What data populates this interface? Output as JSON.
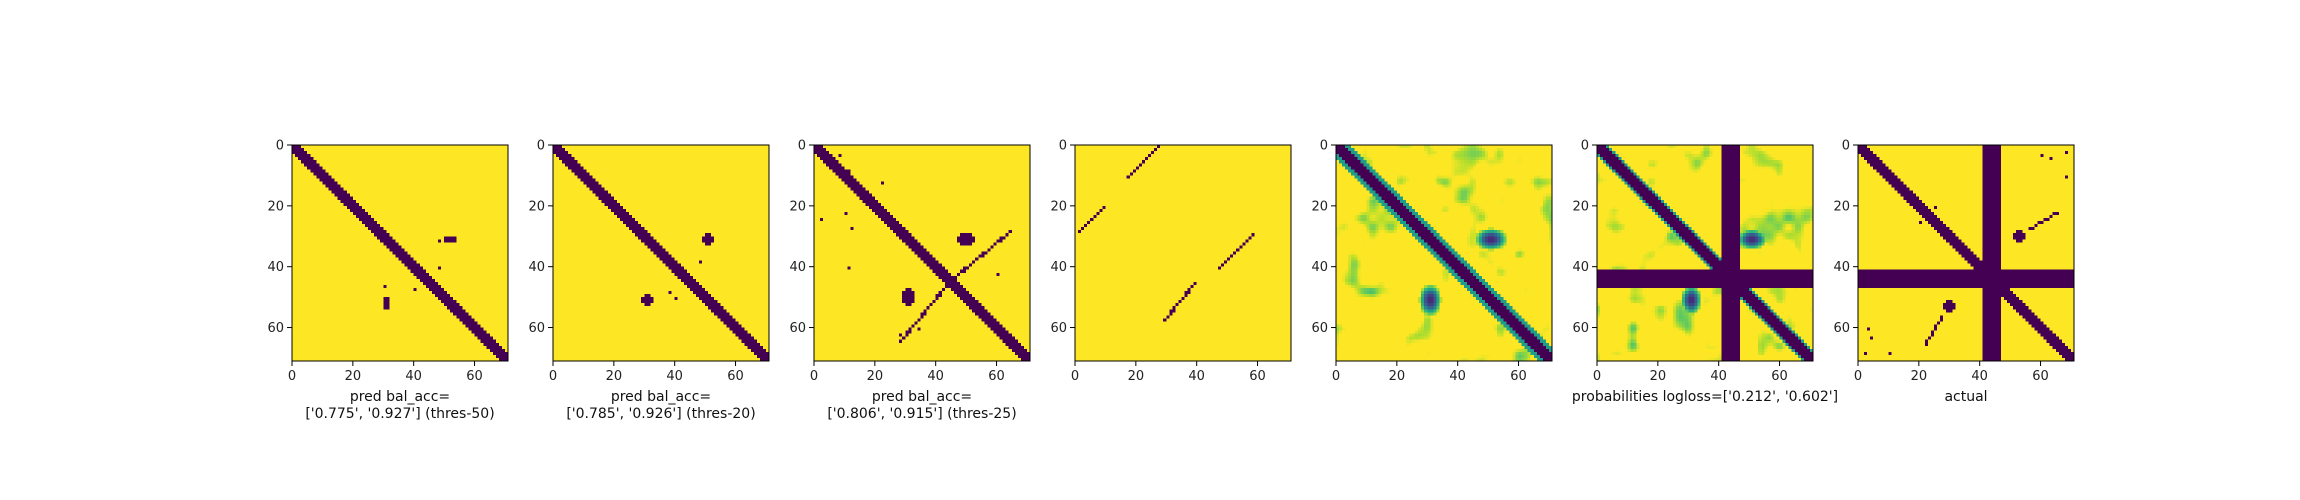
{
  "chart_data": [
    {
      "type": "heatmap",
      "rendering": "binary",
      "colormap": "viridis",
      "x_ticks": [
        0,
        20,
        40,
        60
      ],
      "y_ticks": [
        0,
        20,
        40,
        60
      ],
      "xlim": [
        0,
        71
      ],
      "ylim": [
        71,
        0
      ],
      "xlabel_lines": [
        "pred bal_acc=",
        "['0.775', '0.927'] (thres-50)"
      ],
      "features": {
        "diagonal": {
          "from": [
            0,
            0
          ],
          "to": [
            71,
            71
          ],
          "width": 3.2
        },
        "blobs": [
          {
            "x": 52,
            "y": 31,
            "rx": 2.2,
            "ry": 1.4
          },
          {
            "x": 31,
            "y": 52,
            "rx": 1.4,
            "ry": 2.2
          }
        ],
        "dots": [
          [
            48,
            31
          ],
          [
            30,
            46
          ],
          [
            40,
            47
          ],
          [
            48,
            40
          ]
        ]
      }
    },
    {
      "type": "heatmap",
      "rendering": "binary",
      "colormap": "viridis",
      "x_ticks": [
        0,
        20,
        40,
        60
      ],
      "y_ticks": [
        0,
        20,
        40,
        60
      ],
      "xlim": [
        0,
        71
      ],
      "ylim": [
        71,
        0
      ],
      "xlabel_lines": [
        "pred bal_acc=",
        "['0.785', '0.926'] (thres-20)"
      ],
      "features": {
        "diagonal": {
          "from": [
            0,
            0
          ],
          "to": [
            71,
            71
          ],
          "width": 3.6
        },
        "blobs": [
          {
            "x": 51,
            "y": 31,
            "rx": 2.5,
            "ry": 1.6
          },
          {
            "x": 31,
            "y": 51,
            "rx": 1.6,
            "ry": 2.5
          }
        ],
        "dots": [
          [
            48,
            38
          ],
          [
            40,
            50
          ],
          [
            38,
            48
          ]
        ]
      }
    },
    {
      "type": "heatmap",
      "rendering": "binary",
      "colormap": "viridis",
      "x_ticks": [
        0,
        20,
        40,
        60
      ],
      "y_ticks": [
        0,
        20,
        40,
        60
      ],
      "xlim": [
        0,
        71
      ],
      "ylim": [
        71,
        0
      ],
      "xlabel_lines": [
        "pred bal_acc=",
        "['0.806', '0.915'] (thres-25)"
      ],
      "features": {
        "diagonal": {
          "from": [
            0,
            0
          ],
          "to": [
            71,
            71
          ],
          "width": 4.0
        },
        "blobs": [
          {
            "x": 50,
            "y": 31,
            "rx": 3.0,
            "ry": 2.0
          },
          {
            "x": 31,
            "y": 50,
            "rx": 2.0,
            "ry": 3.0
          }
        ],
        "lines": [
          {
            "from": [
              46,
              44
            ],
            "to": [
              65,
              28
            ],
            "width": 0.9
          },
          {
            "from": [
              44,
              46
            ],
            "to": [
              28,
              65
            ],
            "width": 0.9
          }
        ],
        "dots": [
          [
            8,
            3
          ],
          [
            11,
            8
          ],
          [
            22,
            12
          ],
          [
            2,
            24
          ],
          [
            10,
            22
          ],
          [
            12,
            27
          ],
          [
            11,
            40
          ],
          [
            28,
            62
          ],
          [
            34,
            60
          ],
          [
            60,
            42
          ]
        ]
      }
    },
    {
      "type": "heatmap",
      "rendering": "binary",
      "colormap": "viridis",
      "x_ticks": [
        0,
        20,
        40,
        60
      ],
      "y_ticks": [
        0,
        20,
        40,
        60
      ],
      "xlim": [
        0,
        71
      ],
      "ylim": [
        71,
        0
      ],
      "xlabel_lines": [],
      "features": {
        "lines": [
          {
            "from": [
              28,
              0
            ],
            "to": [
              17,
              11
            ],
            "width": 0.9
          },
          {
            "from": [
              10,
              20
            ],
            "to": [
              1,
              29
            ],
            "width": 0.9
          },
          {
            "from": [
              59,
              29
            ],
            "to": [
              47,
              41
            ],
            "width": 0.9
          },
          {
            "from": [
              40,
              45
            ],
            "to": [
              29,
              58
            ],
            "width": 0.9
          }
        ]
      }
    },
    {
      "type": "heatmap",
      "rendering": "continuous",
      "colormap": "viridis",
      "x_ticks": [
        0,
        20,
        40,
        60
      ],
      "y_ticks": [
        0,
        20,
        40,
        60
      ],
      "xlim": [
        0,
        71
      ],
      "ylim": [
        71,
        0
      ],
      "xlabel_lines": [],
      "features": {
        "diagonal_bands": [
          {
            "offset": 0,
            "width": 3.2,
            "value": 0.0
          },
          {
            "offset": 3.4,
            "width": 0.9,
            "value": 0.55
          },
          {
            "offset": -3.4,
            "width": 0.9,
            "value": 0.55
          }
        ],
        "blobs": [
          {
            "x": 51,
            "y": 31,
            "rx": 3.5,
            "ry": 2.4,
            "value": 0.1
          },
          {
            "x": 31,
            "y": 51,
            "rx": 2.4,
            "ry": 3.5,
            "value": 0.1
          }
        ],
        "noise_level": 0.35
      }
    },
    {
      "type": "heatmap",
      "rendering": "continuous",
      "colormap": "viridis",
      "x_ticks": [
        0,
        20,
        40,
        60
      ],
      "y_ticks": [
        0,
        20,
        40,
        60
      ],
      "xlim": [
        0,
        71
      ],
      "ylim": [
        71,
        0
      ],
      "xlabel_lines": [
        "probabilities logloss=['0.212', '0.602']"
      ],
      "features": {
        "masked_row_range": [
          41,
          46
        ],
        "masked_col_range": [
          41,
          46
        ],
        "diagonal_bands": [
          {
            "offset": 0,
            "width": 3.2,
            "value": 0.0
          },
          {
            "offset": 3.2,
            "width": 0.9,
            "value": 0.55
          },
          {
            "offset": -3.2,
            "width": 0.9,
            "value": 0.55
          }
        ],
        "blobs": [
          {
            "x": 51,
            "y": 31,
            "rx": 3.2,
            "ry": 2.2,
            "value": 0.1
          },
          {
            "x": 31,
            "y": 51,
            "rx": 2.2,
            "ry": 3.2,
            "value": 0.1
          }
        ],
        "noise_level": 0.35
      }
    },
    {
      "type": "heatmap",
      "rendering": "binary",
      "colormap": "viridis",
      "x_ticks": [
        0,
        20,
        40,
        60
      ],
      "y_ticks": [
        0,
        20,
        40,
        60
      ],
      "xlim": [
        0,
        71
      ],
      "ylim": [
        71,
        0
      ],
      "xlabel_lines": [
        "actual"
      ],
      "features": {
        "masked_row_range": [
          41,
          46
        ],
        "masked_col_range": [
          41,
          46
        ],
        "diagonal": {
          "from": [
            0,
            0
          ],
          "to": [
            71,
            71
          ],
          "width": 3.0
        },
        "blobs": [
          {
            "x": 53,
            "y": 30,
            "rx": 2.5,
            "ry": 1.6
          },
          {
            "x": 30,
            "y": 53,
            "rx": 1.6,
            "ry": 2.5
          }
        ],
        "lines": [
          {
            "from": [
              56,
              28
            ],
            "to": [
              66,
              22
            ],
            "width": 1.0
          },
          {
            "from": [
              28,
              56
            ],
            "to": [
              22,
              66
            ],
            "width": 1.0
          }
        ],
        "dots": [
          [
            60,
            3
          ],
          [
            63,
            4
          ],
          [
            68,
            2
          ],
          [
            3,
            60
          ],
          [
            4,
            63
          ],
          [
            2,
            68
          ],
          [
            10,
            68
          ],
          [
            68,
            10
          ],
          [
            25,
            20
          ],
          [
            20,
            25
          ]
        ]
      }
    }
  ]
}
